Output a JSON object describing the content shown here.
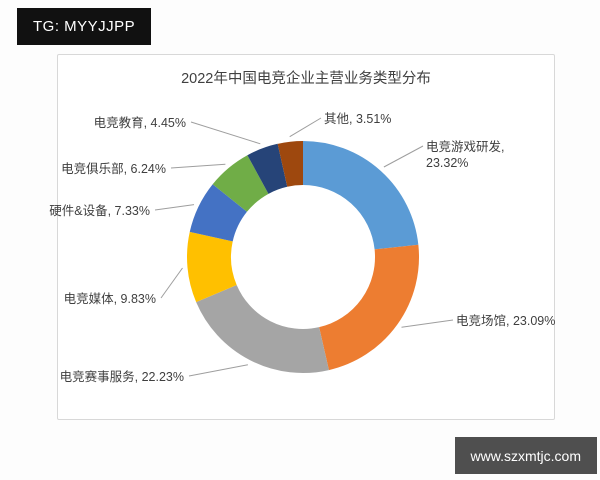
{
  "watermarks": {
    "top_left": "TG: MYYJJPP",
    "top_left_bg": "#111111",
    "bottom_right": "www.szxmtjc.com",
    "bottom_right_bg": "#4f4f4f"
  },
  "chart_data": {
    "type": "pie",
    "subtype": "donut",
    "title": "2022年中国电竞企业主营业务类型分布",
    "unit": "%",
    "direction": "clockwise",
    "start_angle_deg": 0,
    "legend": "none",
    "labels_outside_with_leader_lines": true,
    "segments": [
      {
        "label": "电竞游戏研发",
        "value": 23.32,
        "color": "#5B9BD5"
      },
      {
        "label": "电竞场馆",
        "value": 23.09,
        "color": "#ED7D31"
      },
      {
        "label": "电竞赛事服务",
        "value": 22.23,
        "color": "#A5A5A5"
      },
      {
        "label": "电竞媒体",
        "value": 9.83,
        "color": "#FFC000"
      },
      {
        "label": "硬件&设备",
        "value": 7.33,
        "color": "#4472C4"
      },
      {
        "label": "电竞俱乐部",
        "value": 6.24,
        "color": "#70AD47"
      },
      {
        "label": "电竞教育",
        "value": 4.45,
        "color": "#264478"
      },
      {
        "label": "其他",
        "value": 3.51,
        "color": "#9E480E"
      }
    ]
  }
}
